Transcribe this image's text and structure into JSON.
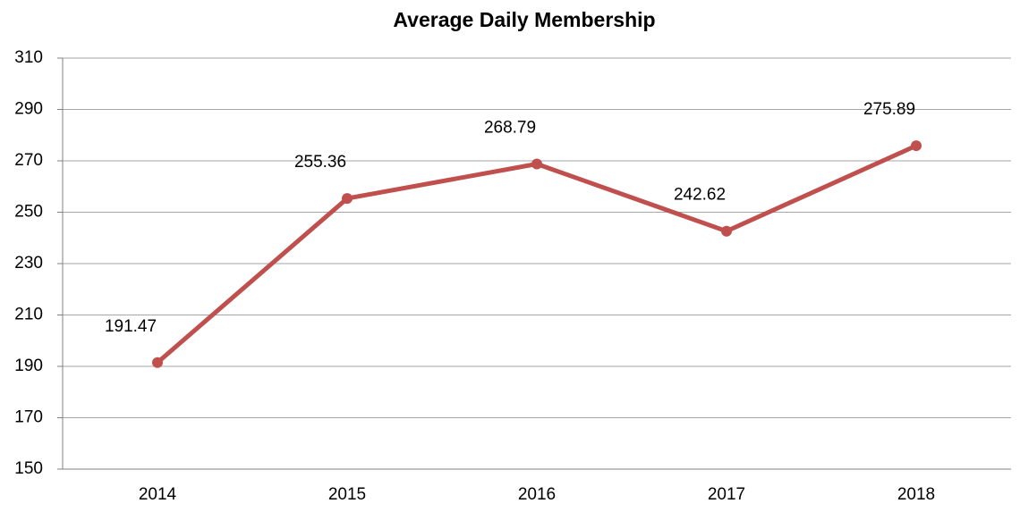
{
  "chart_data": {
    "type": "line",
    "title": "Average Daily Membership",
    "categories": [
      "2014",
      "2015",
      "2016",
      "2017",
      "2018"
    ],
    "values": [
      191.47,
      255.36,
      268.79,
      242.62,
      275.89
    ],
    "color": "#c0504d",
    "ylim": [
      150,
      310
    ],
    "yticks": [
      150,
      170,
      190,
      210,
      230,
      250,
      270,
      290,
      310
    ],
    "grid": true
  }
}
